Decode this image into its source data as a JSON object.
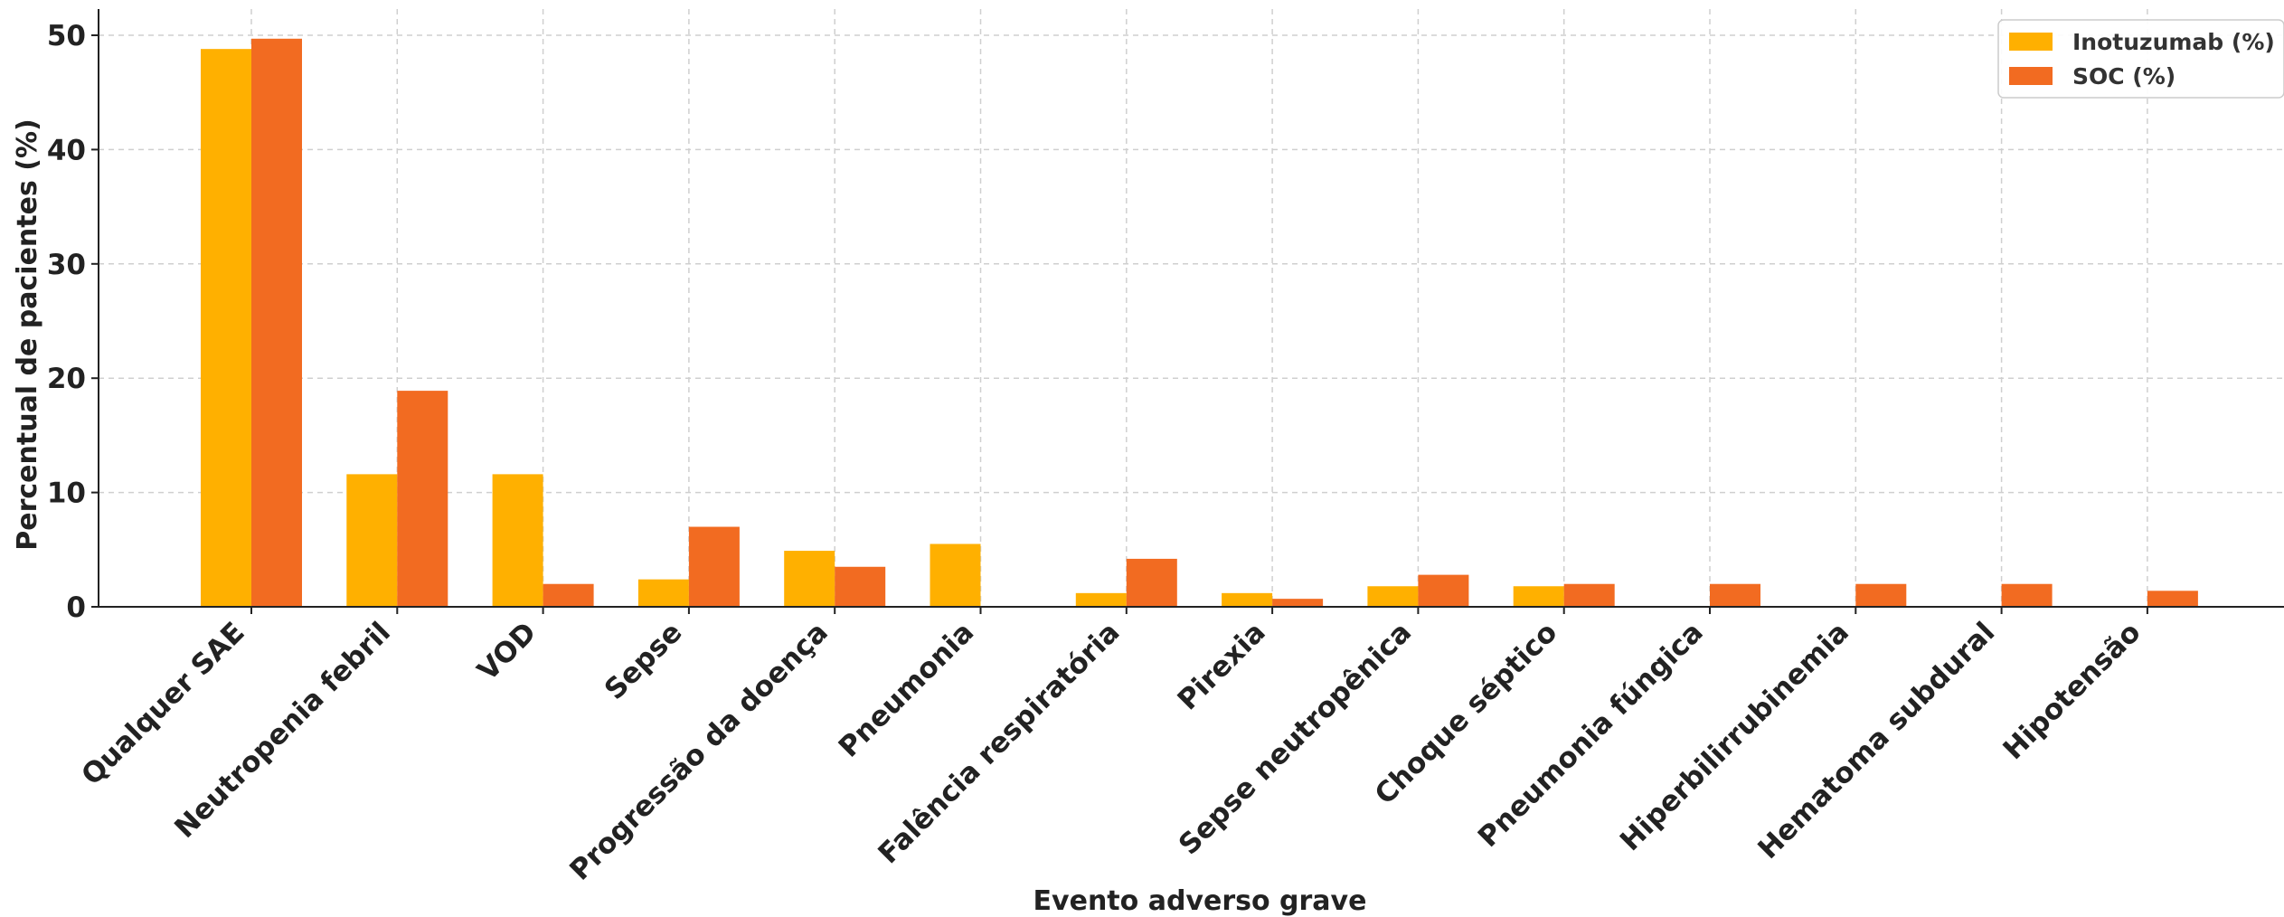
{
  "chart_data": {
    "type": "bar",
    "title": "",
    "xlabel": "Evento adverso grave",
    "ylabel": "Percentual de pacientes (%)",
    "ylim": [
      0,
      52
    ],
    "yticks": [
      0,
      10,
      20,
      30,
      40,
      50
    ],
    "grid": true,
    "legend_position": "top-right",
    "categories": [
      "Qualquer SAE",
      "Neutropenia febril",
      "VOD",
      "Sepse",
      "Progressão da doença",
      "Pneumonia",
      "Falência respiratória",
      "Pirexia",
      "Sepse neutropênica",
      "Choque séptico",
      "Pneumonia fúngica",
      "Hiperbilirrubinemia",
      "Hematoma subdural",
      "Hipotensão"
    ],
    "series": [
      {
        "name": "Inotuzumab (%)",
        "color": "#FFB000",
        "values": [
          48.8,
          11.6,
          11.6,
          2.4,
          4.9,
          5.5,
          1.2,
          1.2,
          1.8,
          1.8,
          0,
          0,
          0,
          0
        ]
      },
      {
        "name": "SOC (%)",
        "color": "#F26B21",
        "values": [
          49.7,
          18.9,
          2.0,
          7.0,
          3.5,
          0,
          4.2,
          0.7,
          2.8,
          2.0,
          2.0,
          2.0,
          2.0,
          1.4
        ]
      }
    ]
  }
}
